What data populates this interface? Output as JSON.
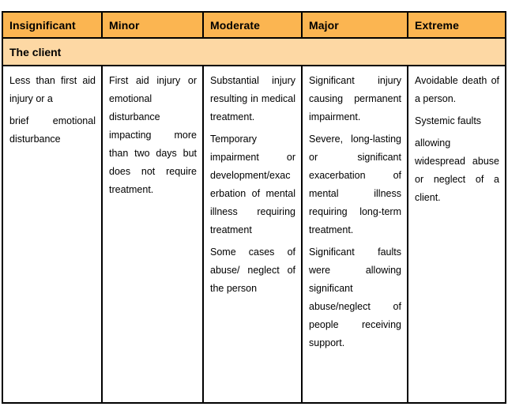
{
  "risk_table": {
    "header_row": {
      "insignificant": "Insignificant",
      "minor": "Minor",
      "moderate": "Moderate",
      "major": "Major",
      "extreme": "Extreme"
    },
    "section_row": {
      "label": "The client"
    },
    "body_row": {
      "insignificant": {
        "paragraphs": [
          "Less than first aid injury or a",
          "brief emotional disturbance"
        ]
      },
      "minor": {
        "paragraphs": [
          "First aid injury or emotional disturbance impacting more than two days but does not require treatment."
        ]
      },
      "moderate": {
        "paragraphs": [
          "Substantial injury resulting in medical treatment.",
          "Temporary impairment or development/exacerbation of mental illness requiring treatment",
          "Some cases of abuse/ neglect of the person"
        ]
      },
      "major": {
        "paragraphs": [
          "Significant injury causing permanent impairment.",
          "Severe, long-lasting or significant exacerbation of mental illness requiring long-term treatment.",
          "Significant faults were allowing significant abuse/neglect of people receiving support."
        ]
      },
      "extreme": {
        "paragraphs": [
          "Avoidable death of a person.",
          "Systemic faults",
          "allowing widespread abuse or neglect of a client."
        ]
      }
    },
    "colors": {
      "header_bg": "#FBB551",
      "section_bg": "#FDD8A4",
      "border": "#000000",
      "text": "#000000",
      "page_bg": "#FFFFFF"
    }
  }
}
